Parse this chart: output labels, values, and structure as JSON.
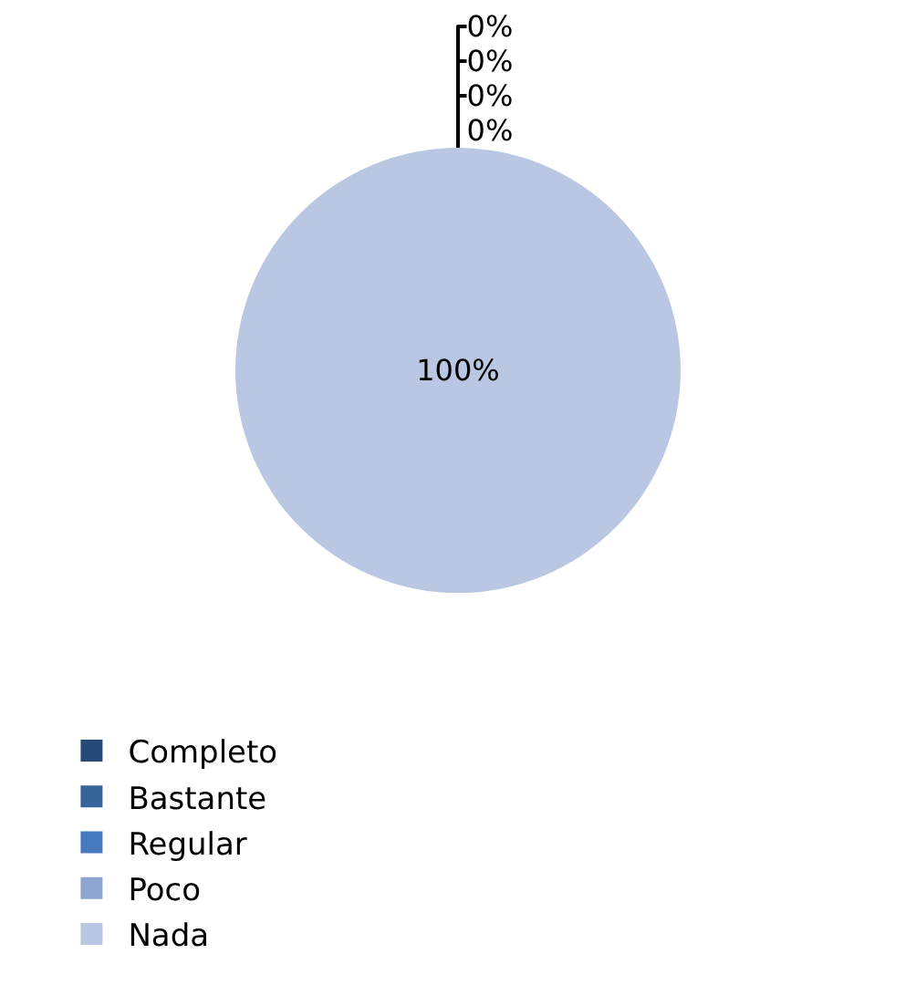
{
  "chart_data": {
    "type": "pie",
    "categories": [
      "Completo",
      "Bastante",
      "Regular",
      "Poco",
      "Nada"
    ],
    "values": [
      0,
      0,
      0,
      0,
      100
    ],
    "value_labels": [
      "0%",
      "0%",
      "0%",
      "0%",
      "100%"
    ],
    "colors": [
      "#254a7a",
      "#37649b",
      "#4679bd",
      "#8ea6cf",
      "#b9c7e2"
    ],
    "legend": "bottom left"
  }
}
